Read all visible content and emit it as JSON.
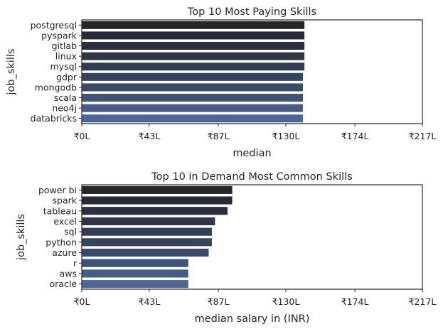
{
  "chart_data": [
    {
      "type": "bar",
      "orientation": "horizontal",
      "title": "Top 10 Most Paying Skills",
      "xlabel": "median",
      "ylabel": "job_skills",
      "categories": [
        "postgresql",
        "pyspark",
        "gitlab",
        "linux",
        "mysql",
        "gdpr",
        "mongodb",
        "scala",
        "neo4j",
        "databricks"
      ],
      "values": [
        142,
        142,
        142,
        142,
        142,
        141,
        141,
        141,
        141,
        141
      ],
      "value_units": "₹ lakh",
      "xlim": [
        0,
        217
      ],
      "xticks": [
        0,
        43,
        87,
        130,
        174,
        217
      ],
      "xtick_labels": [
        "₹0L",
        "₹43L",
        "₹87L",
        "₹130L",
        "₹174L",
        "₹217L"
      ],
      "grid": false,
      "colors": [
        "#26272b",
        "#272b37",
        "#2a2f3f",
        "#2e3648",
        "#313d53",
        "#34445f",
        "#394b6b",
        "#3f5378",
        "#455c88",
        "#4c6698"
      ]
    },
    {
      "type": "bar",
      "orientation": "horizontal",
      "title": "Top 10 in Demand Most Common Skills",
      "xlabel": "median salary in (INR)",
      "ylabel": "job_skills",
      "categories": [
        "power bi",
        "spark",
        "tableau",
        "excel",
        "sql",
        "python",
        "azure",
        "r",
        "aws",
        "oracle"
      ],
      "values": [
        96,
        96,
        93,
        85,
        83,
        83,
        81,
        68,
        68,
        68
      ],
      "value_units": "₹ lakh",
      "xlim": [
        0,
        217
      ],
      "xticks": [
        0,
        43,
        87,
        130,
        174,
        217
      ],
      "xtick_labels": [
        "₹0L",
        "₹43L",
        "₹87L",
        "₹130L",
        "₹174L",
        "₹217L"
      ],
      "grid": false,
      "colors": [
        "#26272b",
        "#272b37",
        "#2a2f3f",
        "#2e3648",
        "#313d53",
        "#34445f",
        "#394b6b",
        "#3f5378",
        "#455c88",
        "#4c6698"
      ]
    }
  ]
}
